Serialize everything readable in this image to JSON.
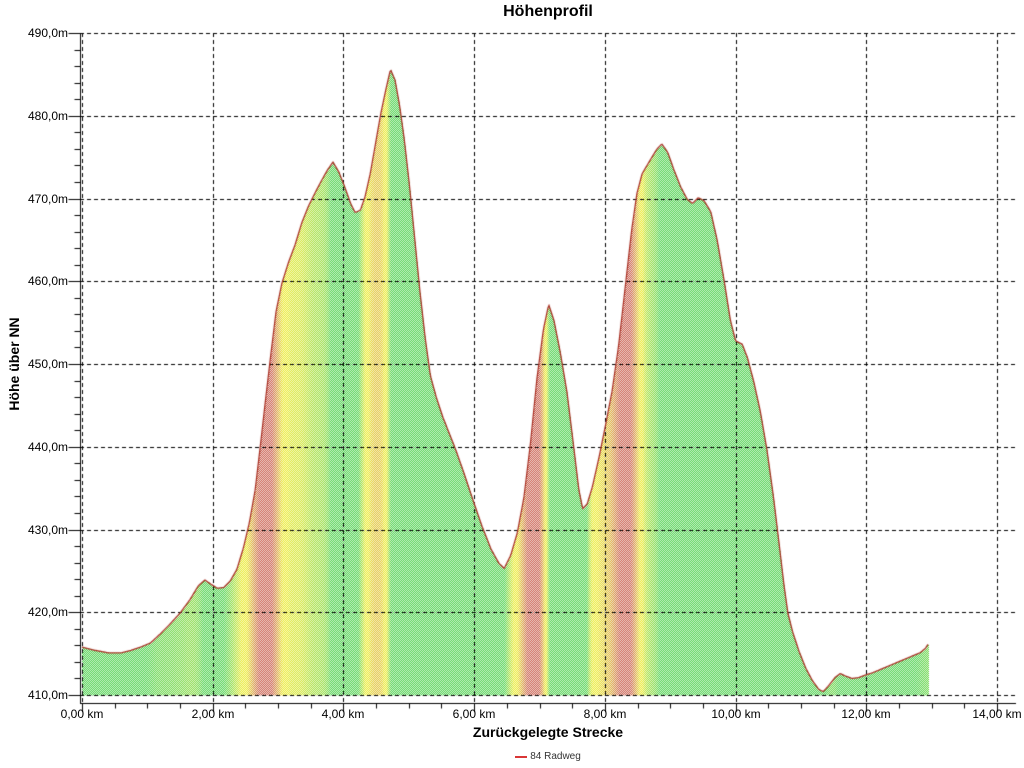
{
  "title": "Höhenprofil",
  "y_axis": {
    "label": "Höhe über NN",
    "ticks": [
      "490,0m",
      "480,0m",
      "470,0m",
      "460,0m",
      "450,0m",
      "440,0m",
      "430,0m",
      "420,0m",
      "410,0m"
    ]
  },
  "x_axis": {
    "label": "Zurückgelegte Strecke",
    "ticks": [
      "0,00 km",
      "2,00 km",
      "4,00 km",
      "6,00 km",
      "8,00 km",
      "10,00 km",
      "12,00 km",
      "14,00 km"
    ]
  },
  "legend": {
    "label": "84 Radweg",
    "marker_color": "#d93636"
  },
  "colors": {
    "background": "#ffffff",
    "grid": "#000000",
    "axis": "#000000",
    "profile_line": "#a93226",
    "slope_flat_green": "#28c828",
    "slope_moderate_yellow": "#e6e600",
    "slope_steep_red": "#be3c28",
    "dither": "50% white checkerboard over slope colors"
  },
  "chart_data": {
    "type": "area",
    "title": "Höhenprofil",
    "xlabel": "Zurückgelegte Strecke",
    "ylabel": "Höhe über NN",
    "x_unit": "km",
    "y_unit": "m",
    "xlim": [
      0,
      14
    ],
    "ylim": [
      410,
      490
    ],
    "x_major_step": 2,
    "x_minor_step": 0.5,
    "y_major_step": 10,
    "y_minor_step": 2,
    "grid": true,
    "legend_position": "bottom-center",
    "fill_coloring": "vertical stripes by uphill slope: green flat, yellow moderate climb, red steep climb; descents green",
    "slope_color_stops_m_per_km": [
      [
        4,
        "green"
      ],
      [
        26,
        "yellow"
      ],
      [
        34,
        "yellow"
      ],
      [
        62,
        "red"
      ]
    ],
    "series": [
      {
        "name": "84 Radweg",
        "points": [
          [
            0.0,
            415.8
          ],
          [
            0.2,
            415.4
          ],
          [
            0.4,
            415.1
          ],
          [
            0.6,
            415.1
          ],
          [
            0.75,
            415.4
          ],
          [
            0.9,
            415.8
          ],
          [
            1.05,
            416.3
          ],
          [
            1.2,
            417.4
          ],
          [
            1.35,
            418.6
          ],
          [
            1.5,
            419.9
          ],
          [
            1.65,
            421.5
          ],
          [
            1.78,
            423.2
          ],
          [
            1.88,
            423.9
          ],
          [
            1.97,
            423.4
          ],
          [
            2.07,
            422.9
          ],
          [
            2.17,
            423.0
          ],
          [
            2.27,
            423.8
          ],
          [
            2.37,
            425.2
          ],
          [
            2.47,
            427.8
          ],
          [
            2.56,
            430.8
          ],
          [
            2.65,
            434.8
          ],
          [
            2.73,
            440.2
          ],
          [
            2.81,
            445.8
          ],
          [
            2.89,
            451.2
          ],
          [
            2.97,
            456.4
          ],
          [
            3.06,
            459.8
          ],
          [
            3.16,
            462.3
          ],
          [
            3.26,
            464.4
          ],
          [
            3.36,
            467.0
          ],
          [
            3.46,
            469.0
          ],
          [
            3.56,
            470.6
          ],
          [
            3.66,
            472.1
          ],
          [
            3.76,
            473.5
          ],
          [
            3.84,
            474.4
          ],
          [
            3.93,
            473.2
          ],
          [
            4.02,
            471.4
          ],
          [
            4.11,
            469.4
          ],
          [
            4.18,
            468.3
          ],
          [
            4.26,
            468.6
          ],
          [
            4.33,
            470.2
          ],
          [
            4.41,
            473.0
          ],
          [
            4.49,
            476.6
          ],
          [
            4.57,
            480.2
          ],
          [
            4.65,
            483.2
          ],
          [
            4.72,
            485.6
          ],
          [
            4.79,
            484.3
          ],
          [
            4.86,
            481.2
          ],
          [
            4.93,
            477.2
          ],
          [
            5.01,
            471.6
          ],
          [
            5.09,
            465.2
          ],
          [
            5.17,
            458.8
          ],
          [
            5.25,
            453.2
          ],
          [
            5.33,
            448.6
          ],
          [
            5.42,
            446.0
          ],
          [
            5.52,
            443.6
          ],
          [
            5.62,
            441.6
          ],
          [
            5.72,
            439.6
          ],
          [
            5.84,
            436.9
          ],
          [
            5.98,
            433.6
          ],
          [
            6.12,
            430.4
          ],
          [
            6.26,
            427.6
          ],
          [
            6.38,
            425.9
          ],
          [
            6.46,
            425.3
          ],
          [
            6.56,
            426.9
          ],
          [
            6.66,
            429.6
          ],
          [
            6.76,
            433.8
          ],
          [
            6.86,
            440.3
          ],
          [
            6.96,
            448.2
          ],
          [
            7.06,
            454.2
          ],
          [
            7.14,
            457.2
          ],
          [
            7.22,
            455.3
          ],
          [
            7.32,
            451.3
          ],
          [
            7.42,
            446.6
          ],
          [
            7.52,
            440.2
          ],
          [
            7.6,
            434.9
          ],
          [
            7.66,
            432.5
          ],
          [
            7.73,
            433.1
          ],
          [
            7.81,
            435.2
          ],
          [
            7.91,
            438.7
          ],
          [
            8.01,
            442.6
          ],
          [
            8.11,
            446.7
          ],
          [
            8.21,
            452.2
          ],
          [
            8.31,
            459.2
          ],
          [
            8.41,
            466.2
          ],
          [
            8.49,
            470.6
          ],
          [
            8.57,
            473.0
          ],
          [
            8.69,
            474.6
          ],
          [
            8.79,
            475.9
          ],
          [
            8.87,
            476.6
          ],
          [
            8.96,
            475.6
          ],
          [
            9.06,
            473.4
          ],
          [
            9.16,
            471.4
          ],
          [
            9.26,
            469.9
          ],
          [
            9.34,
            469.4
          ],
          [
            9.43,
            470.1
          ],
          [
            9.52,
            469.7
          ],
          [
            9.62,
            468.4
          ],
          [
            9.72,
            464.9
          ],
          [
            9.82,
            460.3
          ],
          [
            9.92,
            455.3
          ],
          [
            10.0,
            452.8
          ],
          [
            10.1,
            452.4
          ],
          [
            10.18,
            450.8
          ],
          [
            10.28,
            447.8
          ],
          [
            10.38,
            444.2
          ],
          [
            10.48,
            439.6
          ],
          [
            10.58,
            433.9
          ],
          [
            10.67,
            428.0
          ],
          [
            10.74,
            423.3
          ],
          [
            10.8,
            419.9
          ],
          [
            10.87,
            417.7
          ],
          [
            10.97,
            415.3
          ],
          [
            11.07,
            413.3
          ],
          [
            11.17,
            411.8
          ],
          [
            11.27,
            410.7
          ],
          [
            11.34,
            410.4
          ],
          [
            11.42,
            411.1
          ],
          [
            11.52,
            412.1
          ],
          [
            11.6,
            412.6
          ],
          [
            11.68,
            412.3
          ],
          [
            11.78,
            412.0
          ],
          [
            11.88,
            412.1
          ],
          [
            11.98,
            412.4
          ],
          [
            12.1,
            412.7
          ],
          [
            12.25,
            413.2
          ],
          [
            12.4,
            413.7
          ],
          [
            12.55,
            414.2
          ],
          [
            12.7,
            414.7
          ],
          [
            12.82,
            415.1
          ],
          [
            12.9,
            415.6
          ],
          [
            12.95,
            416.2
          ]
        ]
      }
    ]
  }
}
